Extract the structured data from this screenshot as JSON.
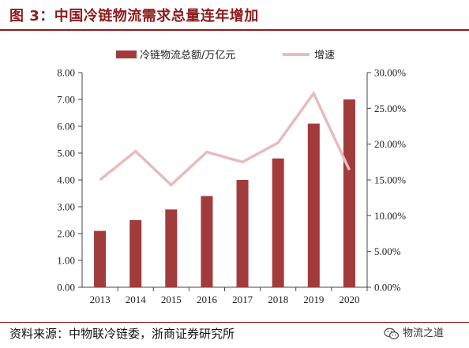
{
  "title": "图 3：中国冷链物流需求总量连年增加",
  "source": "资料来源：中物联冷链委，浙商证券研究所",
  "watermark": "物流之道",
  "watermark_icon": "wechat-icon",
  "colors": {
    "bar": "#a23b3b",
    "line": "#e7bcbc",
    "title": "#8c1c1c"
  },
  "chart_data": {
    "type": "bar",
    "categories": [
      "2013",
      "2014",
      "2015",
      "2016",
      "2017",
      "2018",
      "2019",
      "2020"
    ],
    "series": [
      {
        "name": "冷链物流总额/万亿元",
        "type": "bar",
        "axis": "left",
        "values": [
          2.1,
          2.5,
          2.9,
          3.4,
          4.0,
          4.8,
          6.1,
          7.0
        ]
      },
      {
        "name": "增速",
        "type": "line",
        "axis": "right",
        "values": [
          15.0,
          19.0,
          14.3,
          18.9,
          17.5,
          20.2,
          27.1,
          16.4
        ]
      }
    ],
    "ylim_left": [
      0,
      8
    ],
    "yticks_left": [
      "0.00",
      "1.00",
      "2.00",
      "3.00",
      "4.00",
      "5.00",
      "6.00",
      "7.00",
      "8.00"
    ],
    "ylim_right": [
      0,
      30
    ],
    "yticks_right": [
      "0.00%",
      "5.00%",
      "10.00%",
      "15.00%",
      "20.00%",
      "25.00%",
      "30.00%"
    ],
    "legend_position": "top",
    "grid": false
  }
}
